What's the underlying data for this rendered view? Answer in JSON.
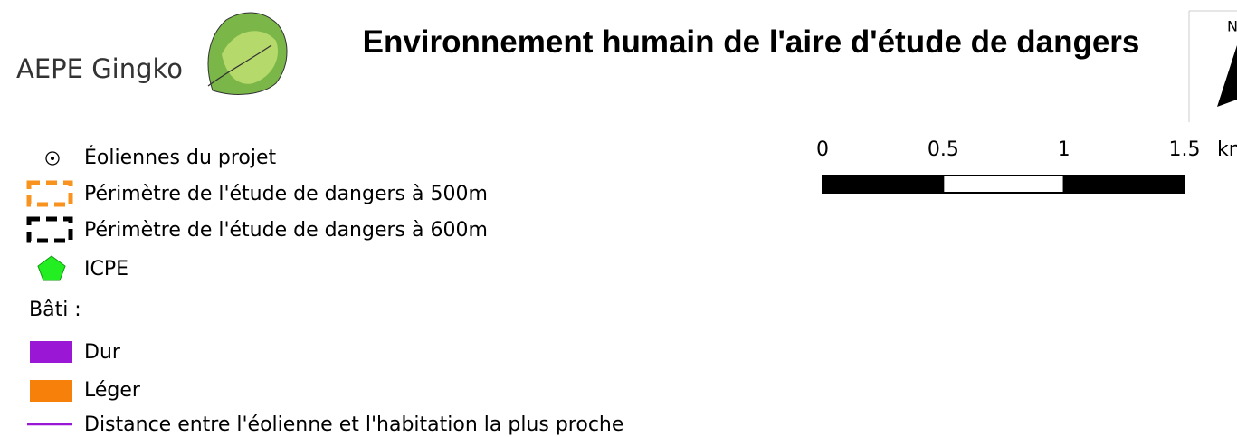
{
  "logo": {
    "text": "AEPE Gingko"
  },
  "title": "Environnement humain de l'aire d'étude de dangers",
  "north_arrow": {
    "label": "N"
  },
  "scale_bar": {
    "ticks": [
      0,
      0.5,
      1,
      1.5
    ],
    "unit": "km"
  },
  "legend": {
    "items": [
      "Éoliennes du projet",
      "Périmètre de l'étude de dangers à 500m",
      "Périmètre de l'étude de dangers à 600m",
      "ICPE",
      "Bâti :",
      "Dur",
      "Léger",
      "Distance entre l'éolienne et l'habitation la plus proche"
    ]
  }
}
